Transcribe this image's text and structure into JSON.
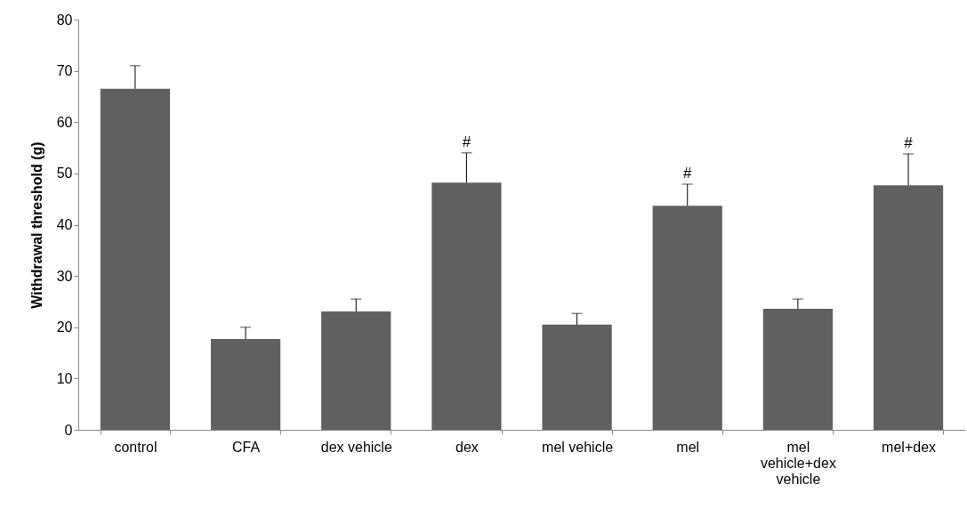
{
  "chart_data": {
    "type": "bar",
    "ylabel": "Withdrawal threshold (g)",
    "categories": [
      "control",
      "CFA",
      "dex vehicle",
      "dex",
      "mel vehicle",
      "mel",
      "mel vehicle+dex vehicle",
      "mel+dex"
    ],
    "values": [
      66.5,
      17.7,
      23.1,
      48.2,
      20.5,
      43.7,
      23.6,
      47.7
    ],
    "errors": [
      [
        66.5,
        71.0
      ],
      [
        17.7,
        20.0
      ],
      [
        23.1,
        25.5
      ],
      [
        48.2,
        54.0
      ],
      [
        20.5,
        22.7
      ],
      [
        43.7,
        47.9
      ],
      [
        23.6,
        25.5
      ],
      [
        47.7,
        53.8
      ]
    ],
    "color": "#606060",
    "ylim": [
      0,
      80
    ],
    "yticks": [
      0,
      10,
      20,
      30,
      40,
      50,
      60,
      70,
      80
    ],
    "grid": false,
    "annotations": [
      {
        "text": "#",
        "x": "dex",
        "y": 54.0
      },
      {
        "text": "#",
        "x": "mel",
        "y": 47.9
      },
      {
        "text": "#",
        "x": "mel+dex",
        "y": 53.8
      }
    ]
  }
}
